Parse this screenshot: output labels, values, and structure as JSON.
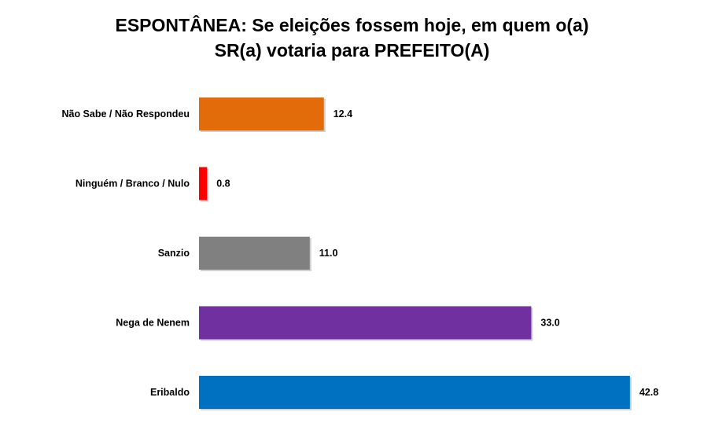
{
  "chart_data": {
    "type": "bar",
    "orientation": "horizontal",
    "title_line1": "ESPONTÂNEA: Se eleições fossem hoje, em quem o(a)",
    "title_line2": "SR(a) votaria para PREFEITO(A)",
    "xlabel": "",
    "ylabel": "",
    "grid": false,
    "legend": "none",
    "categories": [
      "Não Sabe / Não Respondeu",
      "Ninguém / Branco / Nulo",
      "Sanzio",
      "Nega de Nenem",
      "Eribaldo"
    ],
    "values": [
      12.4,
      0.8,
      11.0,
      33.0,
      42.8
    ],
    "value_labels": [
      "12.4",
      "0.8",
      "11.0",
      "33.0",
      "42.8"
    ],
    "colors": [
      "#E36C0A",
      "#FF0000",
      "#808080",
      "#7030A0",
      "#0070C0"
    ]
  }
}
